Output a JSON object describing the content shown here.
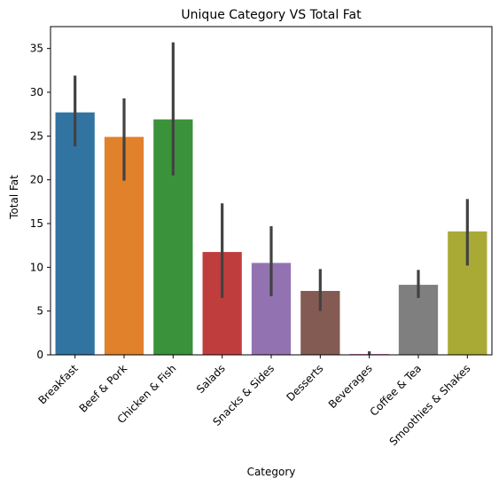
{
  "chart_data": {
    "type": "bar",
    "title": "Unique Category VS Total Fat",
    "xlabel": "Category",
    "ylabel": "Total Fat",
    "categories": [
      "Breakfast",
      "Beef & Pork",
      "Chicken & Fish",
      "Salads",
      "Snacks & Sides",
      "Desserts",
      "Beverages",
      "Coffee & Tea",
      "Smoothies & Shakes"
    ],
    "values": [
      27.7,
      24.9,
      26.9,
      11.75,
      10.5,
      7.3,
      0.1,
      8.0,
      14.1
    ],
    "error_low": [
      23.8,
      19.9,
      20.5,
      6.5,
      6.7,
      5.0,
      0.0,
      6.5,
      10.2
    ],
    "error_high": [
      31.9,
      29.3,
      35.7,
      17.3,
      14.7,
      9.8,
      0.4,
      9.7,
      17.8
    ],
    "colors": [
      "#3274a1",
      "#e1812c",
      "#3a923a",
      "#c03d3e",
      "#9372b2",
      "#845b53",
      "#d684bd",
      "#7f7f7f",
      "#a9aa35"
    ],
    "error_color": "#424242",
    "yticks": [
      0,
      5,
      10,
      15,
      20,
      25,
      30,
      35
    ],
    "ylim": [
      0,
      37.5
    ],
    "grid": false,
    "legend": "none"
  }
}
